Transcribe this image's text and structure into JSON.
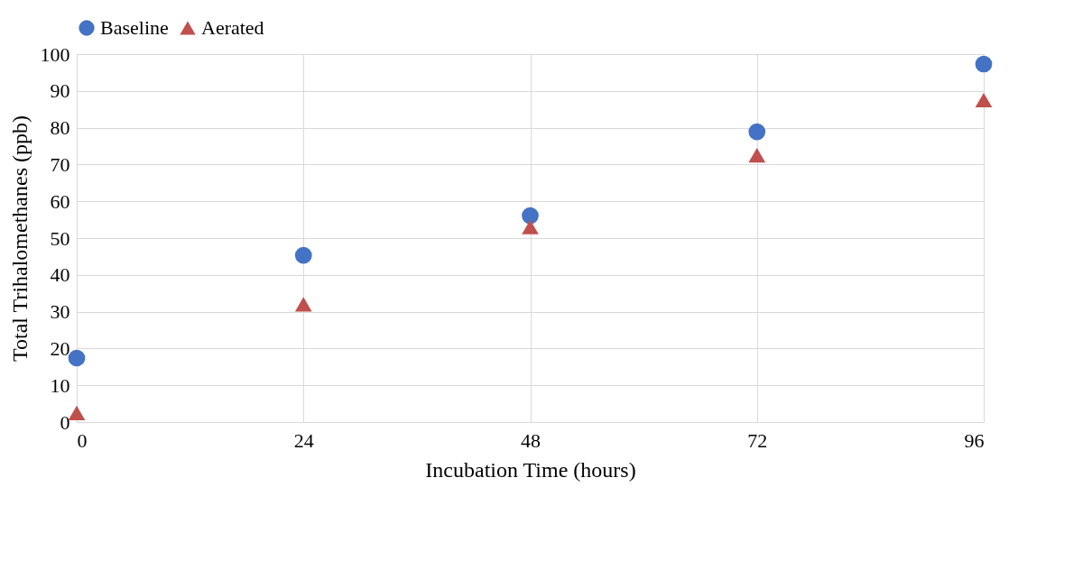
{
  "chart_data": {
    "type": "scatter",
    "xlabel": "Incubation Time (hours)",
    "ylabel": "Total Trihalomethanes (ppb)",
    "x": [
      0,
      24,
      48,
      72,
      96
    ],
    "series": [
      {
        "name": "Baseline",
        "color": "#4472c4",
        "marker": "circle",
        "values": [
          17.4,
          45.3,
          56.1,
          78.9,
          97.3
        ]
      },
      {
        "name": "Aerated",
        "color": "#c0504d",
        "marker": "triangle",
        "values": [
          2.5,
          32,
          53,
          72.5,
          87.5
        ]
      }
    ],
    "xlim": [
      0,
      96
    ],
    "xticks": [
      0,
      24,
      48,
      72,
      96
    ],
    "ylim": [
      0,
      100
    ],
    "yticks": [
      0,
      10,
      20,
      30,
      40,
      50,
      60,
      70,
      80,
      90,
      100
    ],
    "grid": true,
    "legend": "top"
  }
}
